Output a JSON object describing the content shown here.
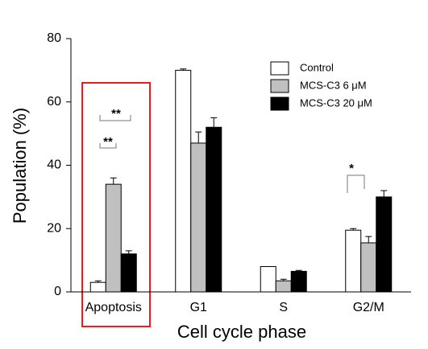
{
  "chart_data": {
    "type": "bar",
    "xlabel": "Cell cycle phase",
    "ylabel": "Population (%)",
    "categories": [
      "Apoptosis",
      "G1",
      "S",
      "G2/M"
    ],
    "series": [
      {
        "name": "Control",
        "color": "#ffffff",
        "values": [
          3,
          70,
          8,
          19.5
        ],
        "errors": [
          0.5,
          0.4,
          0,
          0.5
        ]
      },
      {
        "name": "MCS-C3 6 μM",
        "color": "#c0c0c0",
        "values": [
          34,
          47,
          3.5,
          15.5
        ],
        "errors": [
          2,
          3.5,
          0.5,
          2
        ]
      },
      {
        "name": "MCS-C3 20 μM",
        "color": "#000000",
        "values": [
          12,
          52,
          6.5,
          30
        ],
        "errors": [
          1,
          3,
          0.3,
          2
        ]
      }
    ],
    "ylim": [
      0,
      80
    ],
    "yticks": [
      0,
      20,
      40,
      60,
      80
    ],
    "annotations": [
      "**",
      "**",
      "*"
    ]
  }
}
